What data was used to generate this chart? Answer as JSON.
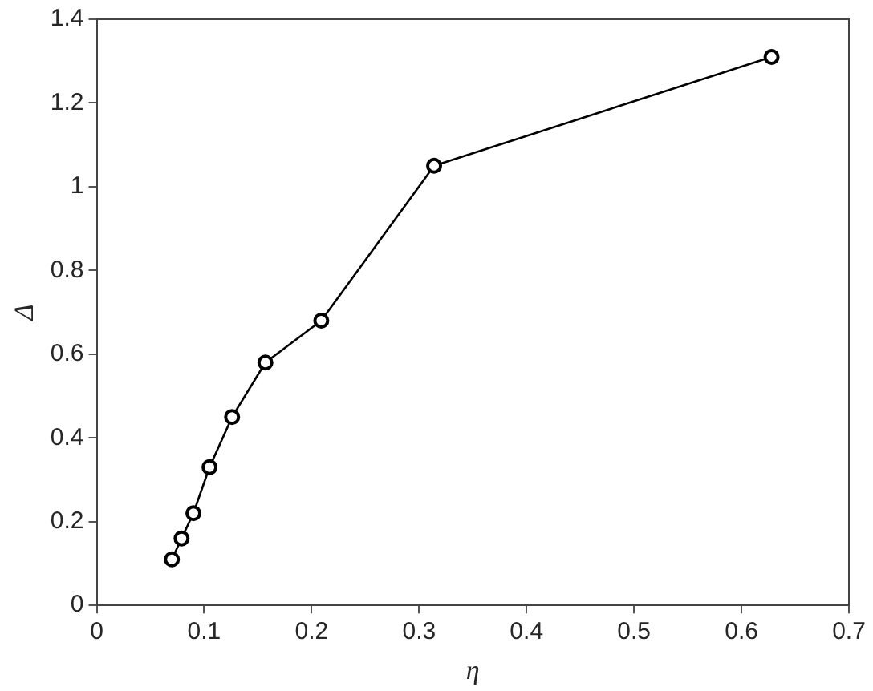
{
  "chart_data": {
    "type": "line",
    "xlabel": "η",
    "ylabel": "Δ",
    "x": [
      0.07,
      0.079,
      0.09,
      0.105,
      0.126,
      0.157,
      0.209,
      0.314,
      0.628
    ],
    "series": [
      {
        "color": "#000000",
        "values": [
          0.11,
          0.16,
          0.22,
          0.33,
          0.45,
          0.58,
          0.68,
          1.05,
          1.31
        ]
      }
    ],
    "xlim": [
      0,
      0.7
    ],
    "xticks": [
      0,
      0.1,
      0.2,
      0.3,
      0.4,
      0.5,
      0.6,
      0.7
    ],
    "ylim": [
      0,
      1.4
    ],
    "yticks": [
      0,
      0.2,
      0.4,
      0.6,
      0.8,
      1,
      1.2,
      1.4
    ],
    "grid": false,
    "legend": false,
    "marker": "circle",
    "line_style": "solid"
  }
}
